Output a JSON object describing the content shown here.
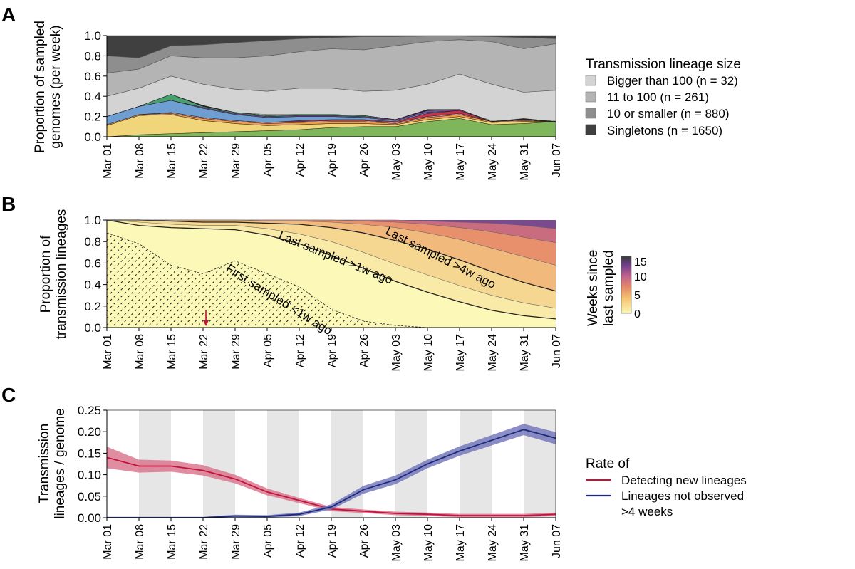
{
  "panels": {
    "a": {
      "letter": "A"
    },
    "b": {
      "letter": "B"
    },
    "c": {
      "letter": "C"
    }
  },
  "x_tick_labels": [
    "Mar 01",
    "Mar 08",
    "Mar 15",
    "Mar 22",
    "Mar 29",
    "Apr 05",
    "Apr 12",
    "Apr 19",
    "Apr 26",
    "May 03",
    "May 10",
    "May 17",
    "May 24",
    "May 31",
    "Jun 07"
  ],
  "chart_data": [
    {
      "panel": "A",
      "type": "area",
      "stacked": true,
      "ylabel": "Proportion of sampled genomes (per week)",
      "ylabel_lines": [
        "Proportion of sampled",
        "genomes (per week)"
      ],
      "ylim": [
        0,
        1
      ],
      "yticks": [
        "0.0",
        "0.2",
        "0.4",
        "0.6",
        "0.8",
        "1.0"
      ],
      "x": [
        "Mar 01",
        "Mar 08",
        "Mar 15",
        "Mar 22",
        "Mar 29",
        "Apr 05",
        "Apr 12",
        "Apr 19",
        "Apr 26",
        "May 03",
        "May 10",
        "May 17",
        "May 24",
        "May 31",
        "Jun 07"
      ],
      "legend_title": "Transmission lineage size",
      "legend_position": "right",
      "series": [
        {
          "name": "Bigger than 100 (n = 32)",
          "color": "#d3d3d3",
          "lower": [
            0.2,
            0.3,
            0.41,
            0.3,
            0.24,
            0.22,
            0.22,
            0.21,
            0.2,
            0.16,
            0.24,
            0.26,
            0.16,
            0.17,
            0.16
          ],
          "upper": [
            0.4,
            0.48,
            0.6,
            0.52,
            0.47,
            0.45,
            0.48,
            0.48,
            0.45,
            0.46,
            0.52,
            0.62,
            0.52,
            0.44,
            0.46
          ]
        },
        {
          "name": "11 to 100 (n = 261)",
          "color": "#b4b4b4",
          "lower": [
            0.4,
            0.48,
            0.6,
            0.52,
            0.47,
            0.45,
            0.48,
            0.48,
            0.45,
            0.46,
            0.52,
            0.62,
            0.52,
            0.44,
            0.46
          ],
          "upper": [
            0.63,
            0.67,
            0.8,
            0.78,
            0.78,
            0.8,
            0.84,
            0.87,
            0.86,
            0.9,
            0.94,
            0.96,
            0.94,
            0.87,
            0.92
          ]
        },
        {
          "name": "10 or smaller (n = 880)",
          "color": "#8e8e8e",
          "lower": [
            0.63,
            0.67,
            0.8,
            0.78,
            0.78,
            0.8,
            0.84,
            0.87,
            0.86,
            0.9,
            0.94,
            0.96,
            0.94,
            0.87,
            0.92
          ],
          "upper": [
            0.8,
            0.78,
            0.9,
            0.91,
            0.93,
            0.95,
            0.97,
            0.98,
            0.99,
            0.99,
            0.995,
            0.995,
            0.99,
            0.98,
            0.97
          ]
        },
        {
          "name": "Singletons (n = 1650)",
          "color": "#404040",
          "lower": [
            0.8,
            0.78,
            0.9,
            0.91,
            0.93,
            0.95,
            0.97,
            0.98,
            0.99,
            0.99,
            0.995,
            0.995,
            0.99,
            0.98,
            0.97
          ],
          "upper": [
            1,
            1,
            1,
            1,
            1,
            1,
            1,
            1,
            1,
            1,
            1,
            1,
            1,
            1,
            1
          ]
        }
      ],
      "lineage_layers": [
        {
          "color": "#7fb55b",
          "values": [
            0.0,
            0.02,
            0.03,
            0.04,
            0.05,
            0.06,
            0.07,
            0.09,
            0.1,
            0.1,
            0.15,
            0.18,
            0.12,
            0.13,
            0.15
          ]
        },
        {
          "color": "#f1d57a",
          "values": [
            0.11,
            0.19,
            0.19,
            0.12,
            0.08,
            0.05,
            0.05,
            0.04,
            0.03,
            0.02,
            0.02,
            0.02,
            0.02,
            0.02,
            0.0
          ]
        },
        {
          "color": "#f39c4a",
          "values": [
            0.01,
            0.01,
            0.01,
            0.02,
            0.02,
            0.02,
            0.02,
            0.02,
            0.02,
            0.01,
            0.02,
            0.02,
            0.01,
            0.01,
            0.0
          ]
        },
        {
          "color": "#e7a3a3",
          "values": [
            0.0,
            0.0,
            0.01,
            0.01,
            0.01,
            0.01,
            0.01,
            0.01,
            0.01,
            0.01,
            0.01,
            0.01,
            0.0,
            0.01,
            0.0
          ]
        },
        {
          "color": "#c8324a",
          "values": [
            0.0,
            0.0,
            0.0,
            0.0,
            0.0,
            0.0,
            0.01,
            0.01,
            0.01,
            0.01,
            0.03,
            0.03,
            0.0,
            0.0,
            0.0
          ]
        },
        {
          "color": "#6f9ed3",
          "values": [
            0.08,
            0.08,
            0.12,
            0.09,
            0.06,
            0.05,
            0.04,
            0.03,
            0.02,
            0.01,
            0.01,
            0.0,
            0.0,
            0.0,
            0.0
          ]
        },
        {
          "color": "#7a4ba0",
          "values": [
            0.0,
            0.0,
            0.0,
            0.01,
            0.01,
            0.01,
            0.01,
            0.01,
            0.01,
            0.01,
            0.02,
            0.01,
            0.0,
            0.0,
            0.0
          ]
        },
        {
          "color": "#48a070",
          "values": [
            0.0,
            0.0,
            0.06,
            0.01,
            0.01,
            0.01,
            0.01,
            0.01,
            0.01,
            0.0,
            0.0,
            0.0,
            0.0,
            0.0,
            0.0
          ]
        },
        {
          "color": "#222222",
          "values": [
            0.0,
            0.0,
            0.0,
            0.01,
            0.0,
            0.0,
            0.0,
            0.0,
            0.0,
            0.0,
            0.01,
            0.0,
            0.0,
            0.01,
            0.0
          ]
        }
      ]
    },
    {
      "panel": "B",
      "type": "area",
      "ylabel": "Proportion of transmission lineages",
      "ylabel_lines": [
        "Proportion of",
        "transmission lineages"
      ],
      "ylim": [
        0,
        1
      ],
      "yticks": [
        "0.0",
        "0.2",
        "0.4",
        "0.6",
        "0.8",
        "1.0"
      ],
      "x": [
        "Mar 01",
        "Mar 08",
        "Mar 15",
        "Mar 22",
        "Mar 29",
        "Apr 05",
        "Apr 12",
        "Apr 19",
        "Apr 26",
        "May 03",
        "May 10",
        "May 17",
        "May 24",
        "May 31",
        "Jun 07"
      ],
      "colorbar_title": "Weeks since last sampled",
      "colorbar_title_lines": [
        "Weeks since",
        "last sampled"
      ],
      "colorbar_range": [
        0,
        15
      ],
      "colorbar_ticks": [
        "0",
        "5",
        "10",
        "15"
      ],
      "contours_weeks_since_last_sampled": [
        {
          "weeks": 1,
          "boundary": [
            1.0,
            0.95,
            0.93,
            0.92,
            0.91,
            0.86,
            0.78,
            0.67,
            0.55,
            0.43,
            0.33,
            0.24,
            0.16,
            0.11,
            0.08
          ]
        },
        {
          "weeks": 2,
          "boundary": [
            1.0,
            0.98,
            0.96,
            0.95,
            0.95,
            0.92,
            0.87,
            0.8,
            0.7,
            0.59,
            0.49,
            0.39,
            0.3,
            0.23,
            0.18
          ]
        },
        {
          "weeks": 4,
          "boundary": [
            1.0,
            1.0,
            0.99,
            0.98,
            0.98,
            0.97,
            0.96,
            0.93,
            0.88,
            0.81,
            0.73,
            0.63,
            0.52,
            0.42,
            0.34
          ]
        },
        {
          "weeks": 7,
          "boundary": [
            1.0,
            1.0,
            1.0,
            1.0,
            1.0,
            0.99,
            0.99,
            0.98,
            0.96,
            0.93,
            0.88,
            0.82,
            0.74,
            0.66,
            0.58
          ]
        },
        {
          "weeks": 10,
          "boundary": [
            1.0,
            1.0,
            1.0,
            1.0,
            1.0,
            1.0,
            1.0,
            1.0,
            0.99,
            0.98,
            0.96,
            0.93,
            0.89,
            0.84,
            0.79
          ]
        },
        {
          "weeks": 13,
          "boundary": [
            1.0,
            1.0,
            1.0,
            1.0,
            1.0,
            1.0,
            1.0,
            1.0,
            1.0,
            1.0,
            0.99,
            0.98,
            0.97,
            0.95,
            0.92
          ]
        }
      ],
      "first_sampled_lt_1w": [
        0.88,
        0.78,
        0.58,
        0.5,
        0.62,
        0.5,
        0.38,
        0.17,
        0.06,
        0.02,
        0.0,
        0.0,
        0.0,
        0.0,
        0.0
      ],
      "arrow_at": "Mar 22",
      "arrow_color": "#c0143c",
      "annotations": [
        "Last sampled >1w ago",
        "Last sampled >4w ago",
        "First sampled <1w ago"
      ]
    },
    {
      "panel": "C",
      "type": "line",
      "ylabel": "Transmission lineages / genome",
      "ylabel_lines": [
        "Transmission",
        "lineages / genome"
      ],
      "ylim": [
        0,
        0.25
      ],
      "yticks": [
        "0.00",
        "0.05",
        "0.10",
        "0.15",
        "0.20",
        "0.25"
      ],
      "x": [
        "Mar 01",
        "Mar 08",
        "Mar 15",
        "Mar 22",
        "Mar 29",
        "Apr 05",
        "Apr 12",
        "Apr 19",
        "Apr 26",
        "May 03",
        "May 10",
        "May 17",
        "May 24",
        "May 31",
        "Jun 07"
      ],
      "grid": false,
      "shaded_weeks": [
        "Mar 08–Mar 15",
        "Mar 22–Mar 29",
        "Apr 05–Apr 12",
        "Apr 19–Apr 26",
        "May 03–May 10",
        "May 17–May 24",
        "May 31–Jun 07"
      ],
      "legend_title": "Rate of",
      "legend_position": "right",
      "series": [
        {
          "name": "Detecting new lineages",
          "label_lines": [
            "Detecting new lineages"
          ],
          "color": "#c0143c",
          "band_color": "#d9708a",
          "values": [
            0.14,
            0.12,
            0.12,
            0.11,
            0.09,
            0.06,
            0.04,
            0.02,
            0.015,
            0.01,
            0.008,
            0.005,
            0.005,
            0.005,
            0.008
          ],
          "ci_half_width": [
            0.025,
            0.015,
            0.013,
            0.012,
            0.01,
            0.008,
            0.006,
            0.005,
            0.004,
            0.004,
            0.004,
            0.004,
            0.004,
            0.004,
            0.004
          ]
        },
        {
          "name": "Lineages not observed >4 weeks",
          "label_lines": [
            "Lineages not observed",
            ">4 weeks"
          ],
          "color": "#1c2a78",
          "band_color": "#6f72b9",
          "values": [
            0.0,
            0.0,
            0.0,
            0.0,
            0.004,
            0.003,
            0.008,
            0.025,
            0.065,
            0.088,
            0.125,
            0.155,
            0.18,
            0.205,
            0.185
          ],
          "ci_half_width": [
            0.002,
            0.002,
            0.002,
            0.002,
            0.003,
            0.003,
            0.004,
            0.006,
            0.009,
            0.01,
            0.01,
            0.011,
            0.012,
            0.013,
            0.014
          ]
        }
      ]
    }
  ]
}
